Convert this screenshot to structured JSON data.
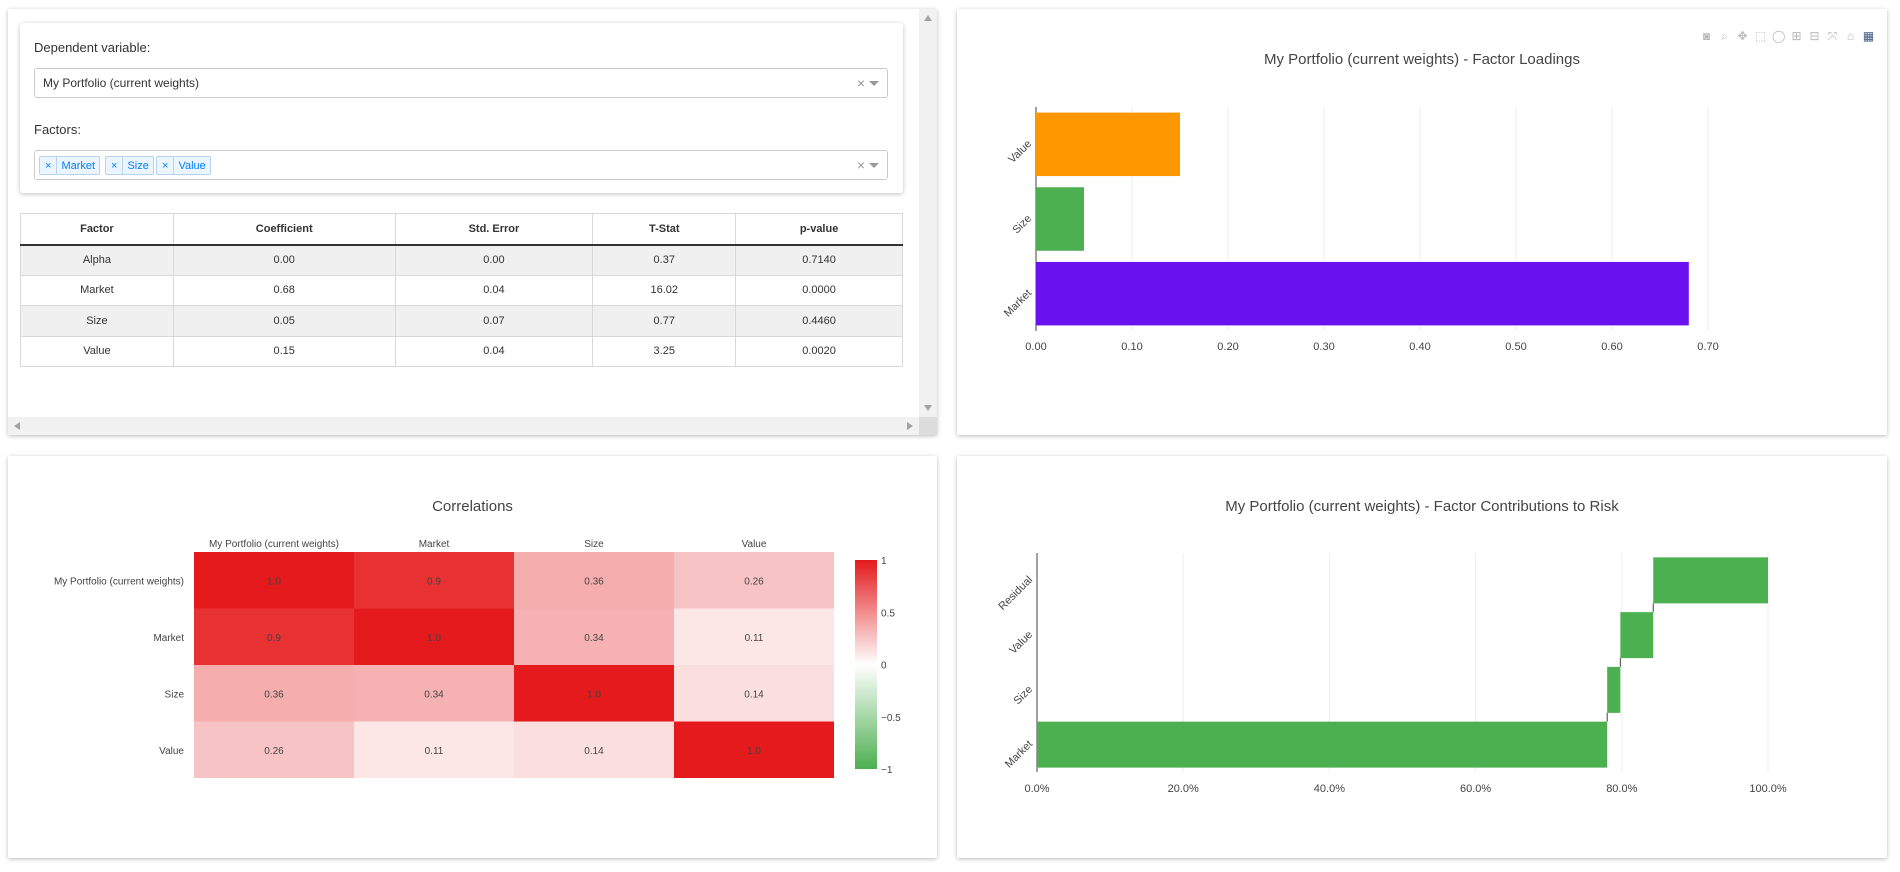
{
  "selector": {
    "dependent_label": "Dependent variable:",
    "dependent_value": "My Portfolio (current weights)",
    "factors_label": "Factors:",
    "factor_tags": [
      "Market",
      "Size",
      "Value"
    ],
    "clear_symbol": "×"
  },
  "regression_table": {
    "headers": [
      "Factor",
      "Coefficient",
      "Std. Error",
      "T-Stat",
      "p-value"
    ],
    "rows": [
      [
        "Alpha",
        "0.00",
        "0.00",
        "0.37",
        "0.7140"
      ],
      [
        "Market",
        "0.68",
        "0.04",
        "16.02",
        "0.0000"
      ],
      [
        "Size",
        "0.05",
        "0.07",
        "0.77",
        "0.4460"
      ],
      [
        "Value",
        "0.15",
        "0.04",
        "3.25",
        "0.0020"
      ]
    ]
  },
  "modebar_icons": [
    "camera-icon",
    "zoom-icon",
    "pan-icon",
    "box-select-icon",
    "lasso-icon",
    "zoom-in-icon",
    "zoom-out-icon",
    "autoscale-icon",
    "reset-axes-icon",
    "plotly-logo-icon"
  ],
  "chart_data": [
    {
      "type": "bar",
      "orientation": "horizontal",
      "title": "My Portfolio (current weights) - Factor Loadings",
      "categories": [
        "Market",
        "Size",
        "Value"
      ],
      "values": [
        0.68,
        0.05,
        0.15
      ],
      "colors": [
        "#6a11f0",
        "#4caf50",
        "#ff9800"
      ],
      "xlim": [
        0,
        0.7
      ],
      "xticks": [
        0.0,
        0.1,
        0.2,
        0.3,
        0.4,
        0.5,
        0.6,
        0.7
      ],
      "xtick_labels": [
        "0.00",
        "0.10",
        "0.20",
        "0.30",
        "0.40",
        "0.50",
        "0.60",
        "0.70"
      ]
    },
    {
      "type": "heatmap",
      "title": "Correlations",
      "x": [
        "My Portfolio (current weights)",
        "Market",
        "Size",
        "Value"
      ],
      "y": [
        "My Portfolio (current weights)",
        "Market",
        "Size",
        "Value"
      ],
      "z": [
        [
          1.0,
          0.9,
          0.36,
          0.26
        ],
        [
          0.9,
          1.0,
          0.34,
          0.11
        ],
        [
          0.36,
          0.34,
          1.0,
          0.14
        ],
        [
          0.26,
          0.11,
          0.14,
          1.0
        ]
      ],
      "z_labels": [
        [
          "1.0",
          "0.9",
          "0.36",
          "0.26"
        ],
        [
          "0.9",
          "1.0",
          "0.34",
          "0.11"
        ],
        [
          "0.36",
          "0.34",
          "1.0",
          "0.14"
        ],
        [
          "0.26",
          "0.11",
          "0.14",
          "1.0"
        ]
      ],
      "zlim": [
        -1,
        1
      ],
      "colorbar_ticks": [
        1,
        0.5,
        0,
        -0.5,
        -1
      ],
      "colorbar_labels": [
        "1",
        "0.5",
        "0",
        "−0.5",
        "−1"
      ],
      "colorscale": [
        "#4caf50",
        "#ffffff",
        "#e41a1c"
      ]
    },
    {
      "type": "bar",
      "subtype": "waterfall",
      "orientation": "horizontal",
      "title": "My Portfolio (current weights) - Factor Contributions to Risk",
      "categories": [
        "Market",
        "Size",
        "Value",
        "Residual"
      ],
      "base": [
        0,
        78,
        79.8,
        84.3
      ],
      "values": [
        78,
        1.8,
        4.5,
        15.7
      ],
      "color": "#4caf50",
      "xlim": [
        0,
        100
      ],
      "xticks": [
        0,
        20,
        40,
        60,
        80,
        100
      ],
      "xtick_labels": [
        "0.0%",
        "20.0%",
        "40.0%",
        "60.0%",
        "80.0%",
        "100.0%"
      ]
    }
  ]
}
